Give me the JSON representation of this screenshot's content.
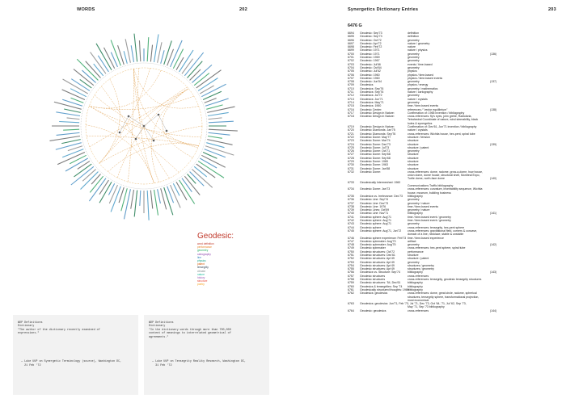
{
  "left_page": {
    "header_title": "WORDS",
    "page_number": "202",
    "legend_title": "Geodesic:",
    "legend_items": [
      {
        "label": "word definition",
        "color": "#c0392b"
      },
      {
        "label": "performance",
        "color": "#e67e22"
      },
      {
        "label": "geometry",
        "color": "#27ae60"
      },
      {
        "label": "cartography",
        "color": "#8e44ad"
      },
      {
        "label": "line",
        "color": "#2980b9"
      },
      {
        "label": "physics",
        "color": "#16a085"
      },
      {
        "label": "patent",
        "color": "#d35400"
      },
      {
        "label": "tensegrity",
        "color": "#2c3e50"
      },
      {
        "label": "climate",
        "color": "#7f8c8d"
      },
      {
        "label": "nature",
        "color": "#1abc9c"
      },
      {
        "label": "history",
        "color": "#9b59b6"
      },
      {
        "label": "structure",
        "color": "#e74c3c"
      },
      {
        "label": "poetry",
        "color": "#f39c12"
      }
    ],
    "cards": [
      {
        "lines": [
          "WDP Definitions",
          "Dictionary",
          "\"The author of the dictionary recently examined of",
          "expressions.\"",
          "",
          "",
          "",
          "",
          "",
          "",
          "",
          "  — Luke UUP on Synergetic Terminology (source), Washington DC,",
          "    21 Feb '72"
        ]
      },
      {
        "lines": [
          "WDP Definitions",
          "Dictionary",
          "\"In the dictionary words through more than 700,000",
          "content of meanings to interrelated geometrical of",
          "agreements.\"",
          "",
          "",
          "",
          "",
          "",
          "",
          "  — Luke UUP on Tensegrity Reality Research, Washington DC,",
          "    31 Feb '72"
        ]
      }
    ]
  },
  "right_page": {
    "header_title": "Synergetics Dictionary Entries",
    "page_number": "203",
    "subheader": "6476 G",
    "entries": [
      {
        "num": "6694",
        "term": "Geodesic: Sep'73",
        "sub": "definition",
        "page": ""
      },
      {
        "num": "6695",
        "term": "Geodesic: Sep'73",
        "sub": "definition",
        "page": ""
      },
      {
        "num": "6696",
        "term": "Geodesic: Oct'72",
        "sub": "geometry",
        "page": ""
      },
      {
        "num": "6697",
        "term": "Geodesic: Apr'72",
        "sub": "nature / geometry",
        "page": ""
      },
      {
        "num": "6698",
        "term": "Geodesic: Feb'72",
        "sub": "nature",
        "page": ""
      },
      {
        "num": "6699",
        "term": "Geodesic: 1971",
        "sub": "nature / physics",
        "page": ""
      },
      {
        "num": "6700",
        "term": "Geodesic: 1971",
        "sub": "geometry",
        "page": "(136)"
      },
      {
        "num": "6701",
        "term": "Geodesic: 1969",
        "sub": "geometry",
        "page": ""
      },
      {
        "num": "6702",
        "term": "Geodesic: 1967",
        "sub": "geometry",
        "page": ""
      },
      {
        "num": "6703",
        "term": "Geodesic: Jul'66",
        "sub": "events / time-based",
        "page": ""
      },
      {
        "num": "6704",
        "term": "Geodesic: Oct'64",
        "sub": "geometry",
        "page": ""
      },
      {
        "num": "6705",
        "term": "Geodesic: Jul'62",
        "sub": "physics",
        "page": ""
      },
      {
        "num": "6706",
        "term": "Geodesic: 1960",
        "sub": "physics / time-based",
        "page": ""
      },
      {
        "num": "6707",
        "term": "Geodesic: 1960",
        "sub": "physics / time-based events",
        "page": ""
      },
      {
        "num": "6708",
        "term": "Geodesic: Jun'54",
        "sub": "geometry",
        "page": "(137)"
      },
      {
        "num": "6709",
        "term": "Geodesics",
        "sub": "physics / energy",
        "page": ""
      },
      {
        "num": "6710",
        "term": "Geodesics: Sep'76",
        "sub": "geometry / mathematics",
        "page": ""
      },
      {
        "num": "6711",
        "term": "Geodesics: Sep'76",
        "sub": "nature / cartography",
        "page": ""
      },
      {
        "num": "6712",
        "term": "Geodesics: Jul'72",
        "sub": "geometry",
        "page": ""
      },
      {
        "num": "6713",
        "term": "Geodesics: Jun'71",
        "sub": "nature / crystals",
        "page": ""
      },
      {
        "num": "6714",
        "term": "Geodesics: May'71",
        "sub": "geometry",
        "page": ""
      },
      {
        "num": "6715",
        "term": "Geodesics: 1960",
        "sub": "time / time-based events",
        "page": ""
      },
      {
        "num": "6716",
        "term": "Geodesic Center:",
        "sub": "references / \"vector equilibrium\"",
        "page": "(138)"
      },
      {
        "num": "6717",
        "term": "Geodesic Design in Nature:",
        "sub": "Confirmation of: 1965   invention / bibliography",
        "page": ""
      },
      {
        "num": "6718",
        "term": "Geodesic Design in Nature:",
        "sub": "cross-references: fly's eyes, john grebe, Radiolaria,",
        "page": ""
      },
      {
        "num": "",
        "term": "",
        "sub": "Tetrahedral Coordinate of nature, wind steerability, black",
        "page": ""
      },
      {
        "num": "",
        "term": "",
        "sub": "holes & synergetics",
        "page": ""
      },
      {
        "num": "6719",
        "term": "Geodesic Design in Nature:",
        "sub": "Confirmation of: Dec'61, Jun'71   invention / bibliography",
        "page": ""
      },
      {
        "num": "6720",
        "term": "Geodesic Diamonds: Jan'75",
        "sub": "nature / crystals",
        "page": ""
      },
      {
        "num": "6721",
        "term": "Geodesic Diamonds: Sep'76",
        "sub": "cross-references: Wichita house, hex-pent, spiral tube",
        "page": ""
      },
      {
        "num": "6722",
        "term": "Geodesic Dome: May'77",
        "sub": "structure / tension",
        "page": ""
      },
      {
        "num": "6723",
        "term": "Geodesic Dome: Mar'74",
        "sub": "structure",
        "page": ""
      },
      {
        "num": "6724",
        "term": "Geodesic Dome: Dec'73",
        "sub": "structure",
        "page": "(139)"
      },
      {
        "num": "6725",
        "term": "Geodesic Dome: Jul'73",
        "sub": "structure / patent",
        "page": ""
      },
      {
        "num": "6726",
        "term": "Geodesic Dome: Oct'71",
        "sub": "geometry",
        "page": ""
      },
      {
        "num": "6727",
        "term": "Geodesic Dome: Sep'68",
        "sub": "structure",
        "page": ""
      },
      {
        "num": "6728",
        "term": "Geodesic Dome: Sep'68",
        "sub": "structure",
        "page": ""
      },
      {
        "num": "6729",
        "term": "Geodesic Dome: 1965",
        "sub": "structure",
        "page": ""
      },
      {
        "num": "6730",
        "term": "Geodesic Dome: 1963",
        "sub": "structure",
        "page": ""
      },
      {
        "num": "6731",
        "term": "Geodesic Dome: Jan'58",
        "sub": "structure",
        "page": ""
      },
      {
        "num": "6732",
        "term": "Geodesic Dome:",
        "sub": "cross-references: dome, radome, grow-a-dome, how house,",
        "page": ""
      },
      {
        "num": "",
        "term": "",
        "sub": "onion dome, dome house, structural shell, Montreal Expo,",
        "page": ""
      },
      {
        "num": "",
        "term": "",
        "sub": "Turtle dome, north-face dome",
        "page": "(140)"
      },
      {
        "num": "6733",
        "term": "Geodesically Intermeshed: 1960",
        "sub": "",
        "page": ""
      },
      {
        "num": "",
        "term": "",
        "sub": "Communications Traffic     bibliography",
        "page": ""
      },
      {
        "num": "6734",
        "term": "Geodesic Dome: Jan'73",
        "sub": "cross-references: curvature, inventability sequence, Wichita",
        "page": ""
      },
      {
        "num": "",
        "term": "",
        "sub": "house, museum, building business",
        "page": ""
      },
      {
        "num": "6735",
        "term": "Geodesics vs. Irrelevance: Dec'73",
        "sub": "bibliography",
        "page": ""
      },
      {
        "num": "6736",
        "term": "Geodesic Line: Sep'74",
        "sub": "geometry",
        "page": ""
      },
      {
        "num": "6737",
        "term": "Geodesic Line: Dec'73",
        "sub": "geometry / nature",
        "page": ""
      },
      {
        "num": "6738",
        "term": "Geodesic Line: 1976",
        "sub": "time / time-based events",
        "page": ""
      },
      {
        "num": "6739",
        "term": "Geodesic Lines: Oct'59",
        "sub": "geometry / nature",
        "page": ""
      },
      {
        "num": "6740",
        "term": "Geodesic Line: Nov'71",
        "sub": "bibliography",
        "page": "(141)"
      },
      {
        "num": "6741",
        "term": "Geodesic sphere: Aug'71",
        "sub": "time / time-based event / geometry",
        "page": ""
      },
      {
        "num": "6742",
        "term": "Geodesic sphere: Aug'71",
        "sub": "time / time-based event / geometry",
        "page": ""
      },
      {
        "num": "6743",
        "term": "Geodesic sphere: Aug'71",
        "sub": "geometry",
        "page": ""
      },
      {
        "num": "6744",
        "term": "Geodesic sphere",
        "sub": "cross-references: tensegrity, hex-pent sphere",
        "page": ""
      },
      {
        "num": "6745",
        "term": "Geodesic sphere: Aug'71, Jun'72",
        "sub": "cross-references: gravitational field, corners & concave,",
        "page": ""
      },
      {
        "num": "",
        "term": "",
        "sub": "domain of a line, necklace, stable & unstable",
        "page": ""
      },
      {
        "num": "6746",
        "term": "Geodesic sphere experience: Feb'73",
        "sub": "time / time-based experience",
        "page": ""
      },
      {
        "num": "6747",
        "term": "Geodesic spinmaker: Aug'73",
        "sub": "artifact",
        "page": ""
      },
      {
        "num": "6748",
        "term": "Geodesic spinmaker: Aug'75",
        "sub": "geometry",
        "page": "(142)"
      },
      {
        "num": "6749",
        "term": "Geodesic spinmaker",
        "sub": "cross-references: hex-pent sphere, spiral tube",
        "page": ""
      },
      {
        "num": "6750",
        "term": "Geodesic structures: Oct'72",
        "sub": "performance",
        "page": ""
      },
      {
        "num": "6751",
        "term": "Geodesic structures: Dec'61",
        "sub": "structure",
        "page": ""
      },
      {
        "num": "6752",
        "term": "Geodesic structures: Apr'49",
        "sub": "structure / patent",
        "page": ""
      },
      {
        "num": "6753",
        "term": "Geodesic structures: Apr'49",
        "sub": "geometry",
        "page": ""
      },
      {
        "num": "6754",
        "term": "Geodesic structures: Apr'49",
        "sub": "structures / geometry",
        "page": ""
      },
      {
        "num": "6755",
        "term": "Geodesic structures: Apr'49",
        "sub": "structures / geometry",
        "page": ""
      },
      {
        "num": "6756",
        "term": "Geodesics vs. Structure: Sep'74",
        "sub": "bibliography",
        "page": "(143)"
      },
      {
        "num": "6757",
        "term": "Geodesic structures",
        "sub": "cross-references",
        "page": ""
      },
      {
        "num": "6758",
        "term": "Geodesic structures",
        "sub": "cross-references: tensegrity, geodesic tensegrity structures",
        "page": ""
      },
      {
        "num": "6759",
        "term": "Geodesic structures: '54, Dec'61",
        "sub": "bibliography",
        "page": ""
      },
      {
        "num": "6760",
        "term": "Geodesics & tensegrities: Sep '74",
        "sub": "bibliography",
        "page": ""
      },
      {
        "num": "6761",
        "term": "Geodesically structured thoughts: 1969",
        "sub": "bibliography",
        "page": ""
      },
      {
        "num": "6762",
        "term": "Geodesics: geodesics",
        "sub": "cross-references: dome, great circle, radome, spherical",
        "page": ""
      },
      {
        "num": "",
        "term": "",
        "sub": "structures, tensegrity sphere, transformational projection,",
        "page": ""
      },
      {
        "num": "",
        "term": "",
        "sub": "most economical",
        "page": ""
      },
      {
        "num": "6763",
        "term": "Geodesics: geodesics: Jun'71, Feb '73, Jul '71, Dec '73, Oct '64, '71, Jul '62, Sep '73,",
        "sub": "",
        "page": ""
      },
      {
        "num": "",
        "term": "",
        "sub": "May '71, Sep '73     bibliography",
        "page": ""
      },
      {
        "num": "6764",
        "term": "Geodesic: geodesics",
        "sub": "cross-references",
        "page": "(144)"
      }
    ]
  }
}
